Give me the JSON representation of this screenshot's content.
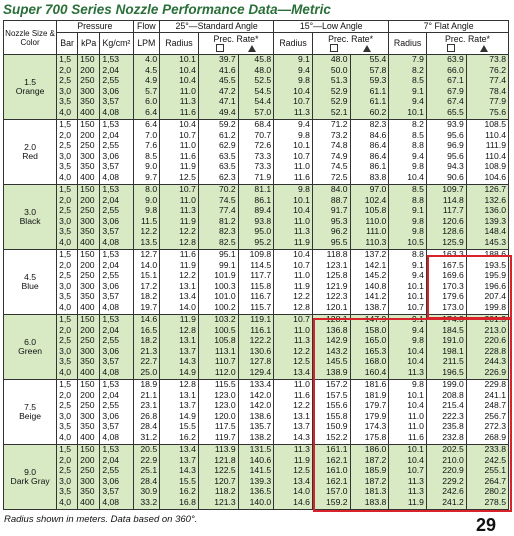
{
  "title": "Super 700  Series Nozzle Performance Data—Metric",
  "headers": {
    "nozzle_size_color": "Nozzle Size & Color",
    "pressure": "Pressure",
    "flow": "Flow",
    "std_angle": "25°—Standard Angle",
    "low_angle": "15°—Low Angle",
    "flat_angle": "7° Flat Angle",
    "bar": "Bar",
    "kpa": "kPa",
    "kgcm2": "Kg/cm²",
    "lpm": "LPM",
    "radius": "Radius",
    "prec_rate": "Prec. Rate*"
  },
  "groups": [
    {
      "size": "1.5",
      "color": "Orange",
      "rows": [
        [
          "1,5",
          "150",
          "1,53",
          "4.0",
          "10.1",
          "39.7",
          "45.8",
          "9.1",
          "48.0",
          "55.4",
          "7.9",
          "63.9",
          "73.8"
        ],
        [
          "2,0",
          "200",
          "2,04",
          "4.5",
          "10.4",
          "41.6",
          "48.0",
          "9.4",
          "50.0",
          "57.8",
          "8.2",
          "66.0",
          "76.2"
        ],
        [
          "2,5",
          "250",
          "2,55",
          "4.9",
          "10.4",
          "45.5",
          "52.5",
          "9.8",
          "51.3",
          "59.3",
          "8.5",
          "67.1",
          "77.4"
        ],
        [
          "3,0",
          "300",
          "3,06",
          "5.7",
          "11.0",
          "47.2",
          "54.5",
          "10.4",
          "52.9",
          "61.1",
          "9.1",
          "67.9",
          "78.4"
        ],
        [
          "3,5",
          "350",
          "3,57",
          "6.0",
          "11.3",
          "47.1",
          "54.4",
          "10.7",
          "52.9",
          "61.1",
          "9.4",
          "67.4",
          "77.9"
        ],
        [
          "4,0",
          "400",
          "4,08",
          "6.4",
          "11.6",
          "49.4",
          "57.0",
          "11.3",
          "52.1",
          "60.2",
          "10.1",
          "65.5",
          "75.6"
        ]
      ]
    },
    {
      "size": "2.0",
      "color": "Red",
      "rows": [
        [
          "1,5",
          "150",
          "1,53",
          "6.4",
          "10.4",
          "59.2",
          "68.4",
          "9.4",
          "71.2",
          "82.3",
          "8.2",
          "93.9",
          "108.5"
        ],
        [
          "2,0",
          "200",
          "2,04",
          "7.0",
          "10.7",
          "61.2",
          "70.7",
          "9.8",
          "73.2",
          "84.6",
          "8.5",
          "95.6",
          "110.4"
        ],
        [
          "2,5",
          "250",
          "2,55",
          "7.6",
          "11.0",
          "62.9",
          "72.6",
          "10.1",
          "74.8",
          "86.4",
          "8.8",
          "96.9",
          "111.9"
        ],
        [
          "3,0",
          "300",
          "3,06",
          "8.5",
          "11.6",
          "63.5",
          "73.3",
          "10.7",
          "74.9",
          "86.4",
          "9.4",
          "95.6",
          "110.4"
        ],
        [
          "3,5",
          "350",
          "3,57",
          "9.0",
          "11.9",
          "63.5",
          "73.3",
          "11.0",
          "74.5",
          "86.1",
          "9.8",
          "94.3",
          "108.9"
        ],
        [
          "4,0",
          "400",
          "4,08",
          "9.7",
          "12.5",
          "62.3",
          "71.9",
          "11.6",
          "72.5",
          "83.8",
          "10.4",
          "90.6",
          "104.6"
        ]
      ]
    },
    {
      "size": "3.0",
      "color": "Black",
      "rows": [
        [
          "1,5",
          "150",
          "1,53",
          "8.0",
          "10.7",
          "70.2",
          "81.1",
          "9.8",
          "84.0",
          "97.0",
          "8.5",
          "109.7",
          "126.7"
        ],
        [
          "2,0",
          "200",
          "2,04",
          "9.0",
          "11.0",
          "74.5",
          "86.1",
          "10.1",
          "88.7",
          "102.4",
          "8.8",
          "114.8",
          "132.6"
        ],
        [
          "2,5",
          "250",
          "2,55",
          "9.8",
          "11.3",
          "77.4",
          "89.4",
          "10.4",
          "91.7",
          "105.8",
          "9.1",
          "117.7",
          "136.0"
        ],
        [
          "3,0",
          "300",
          "3,06",
          "11.5",
          "11.9",
          "81.2",
          "93.8",
          "11.0",
          "95.3",
          "110.0",
          "9.8",
          "120.6",
          "139.3"
        ],
        [
          "3,5",
          "350",
          "3,57",
          "12.2",
          "12.2",
          "82.3",
          "95.0",
          "11.3",
          "96.2",
          "111.0",
          "9.8",
          "128.6",
          "148.4"
        ],
        [
          "4,0",
          "400",
          "4,08",
          "13.5",
          "12.8",
          "82.5",
          "95.2",
          "11.9",
          "95.5",
          "110.3",
          "10.5",
          "125.9",
          "145.3"
        ]
      ]
    },
    {
      "size": "4.5",
      "color": "Blue",
      "rows": [
        [
          "1,5",
          "150",
          "1,53",
          "12.7",
          "11.6",
          "95.1",
          "109.8",
          "10.4",
          "118.8",
          "137.2",
          "8.8",
          "163.3",
          "188.6"
        ],
        [
          "2,0",
          "200",
          "2,04",
          "14.0",
          "11.9",
          "99.1",
          "114.5",
          "10.7",
          "123.1",
          "142.1",
          "9.1",
          "167.5",
          "193.5"
        ],
        [
          "2,5",
          "250",
          "2,55",
          "15.1",
          "12.2",
          "101.9",
          "117.7",
          "11.0",
          "125.8",
          "145.2",
          "9.4",
          "169.6",
          "195.9"
        ],
        [
          "3,0",
          "300",
          "3,06",
          "17.2",
          "13.1",
          "100.3",
          "115.8",
          "11.9",
          "121.9",
          "140.8",
          "10.1",
          "170.3",
          "196.6"
        ],
        [
          "3,5",
          "350",
          "3,57",
          "18.2",
          "13.4",
          "101.0",
          "116.7",
          "12.2",
          "122.3",
          "141.2",
          "10.1",
          "179.6",
          "207.4"
        ],
        [
          "4,0",
          "400",
          "4,08",
          "19.7",
          "14.0",
          "100.2",
          "115.7",
          "12.8",
          "120.1",
          "138.7",
          "10.7",
          "173.0",
          "199.8"
        ]
      ]
    },
    {
      "size": "6.0",
      "color": "Green",
      "rows": [
        [
          "1,5",
          "150",
          "1,53",
          "14.6",
          "11.9",
          "103.2",
          "119.1",
          "10.7",
          "128.1",
          "147.9",
          "9.1",
          "174.3",
          "201.3"
        ],
        [
          "2,0",
          "200",
          "2,04",
          "16.5",
          "12.8",
          "100.5",
          "116.1",
          "11.0",
          "136.8",
          "158.0",
          "9.4",
          "184.5",
          "213.0"
        ],
        [
          "2,5",
          "250",
          "2,55",
          "18.2",
          "13.1",
          "105.8",
          "122.2",
          "11.3",
          "142.9",
          "165.0",
          "9.8",
          "191.0",
          "220.6"
        ],
        [
          "3,0",
          "300",
          "3,06",
          "21.3",
          "13.7",
          "113.1",
          "130.6",
          "12.2",
          "143.2",
          "165.3",
          "10.4",
          "198.1",
          "228.8"
        ],
        [
          "3,5",
          "350",
          "3,57",
          "22.7",
          "14.3",
          "110.7",
          "127.8",
          "12.5",
          "145.5",
          "168.0",
          "10.4",
          "211.5",
          "244.3"
        ],
        [
          "4,0",
          "400",
          "4,08",
          "25.0",
          "14.9",
          "112.0",
          "129.4",
          "13.4",
          "138.9",
          "160.4",
          "11.3",
          "196.5",
          "226.9"
        ]
      ]
    },
    {
      "size": "7.5",
      "color": "Beige",
      "rows": [
        [
          "1,5",
          "150",
          "1,53",
          "18.9",
          "12.8",
          "115.5",
          "133.4",
          "11.0",
          "157.2",
          "181.6",
          "9.8",
          "199.0",
          "229.8"
        ],
        [
          "2,0",
          "200",
          "2,04",
          "21.1",
          "13.1",
          "123.0",
          "142.0",
          "11.6",
          "157.5",
          "181.9",
          "10.1",
          "208.8",
          "241.1"
        ],
        [
          "2,5",
          "250",
          "2,55",
          "23.1",
          "13.7",
          "123.0",
          "142.0",
          "12.2",
          "155.6",
          "179.7",
          "10.4",
          "215.4",
          "248.7"
        ],
        [
          "3,0",
          "300",
          "3,06",
          "26.8",
          "14.9",
          "120.0",
          "138.6",
          "13.1",
          "155.8",
          "179.9",
          "11.0",
          "222.3",
          "256.7"
        ],
        [
          "3,5",
          "350",
          "3,57",
          "28.4",
          "15.5",
          "117.5",
          "135.7",
          "13.7",
          "150.9",
          "174.3",
          "11.0",
          "235.8",
          "272.3"
        ],
        [
          "4,0",
          "400",
          "4,08",
          "31.2",
          "16.2",
          "119.7",
          "138.2",
          "14.3",
          "152.2",
          "175.8",
          "11.6",
          "232.8",
          "268.9"
        ]
      ]
    },
    {
      "size": "9.0",
      "color": "Dark Gray",
      "rows": [
        [
          "1,5",
          "150",
          "1,53",
          "20.5",
          "13.4",
          "113.9",
          "131.5",
          "11.3",
          "161.1",
          "186.0",
          "10.1",
          "202.5",
          "233.8"
        ],
        [
          "2,0",
          "200",
          "2,04",
          "22.9",
          "13.7",
          "121.8",
          "140.6",
          "11.9",
          "162.1",
          "187.2",
          "10.4",
          "210.0",
          "242.5"
        ],
        [
          "2,5",
          "250",
          "2,55",
          "25.1",
          "14.3",
          "122.5",
          "141.5",
          "12.5",
          "161.0",
          "185.9",
          "10.7",
          "220.9",
          "255.1"
        ],
        [
          "3,0",
          "300",
          "3,06",
          "28.4",
          "15.5",
          "120.7",
          "139.3",
          "13.4",
          "162.1",
          "187.2",
          "11.3",
          "229.2",
          "264.7"
        ],
        [
          "3,5",
          "350",
          "3,57",
          "30.9",
          "16.2",
          "118.2",
          "136.5",
          "14.0",
          "157.0",
          "181.3",
          "11.3",
          "242.6",
          "280.2"
        ],
        [
          "4,0",
          "400",
          "4,08",
          "33.2",
          "16.8",
          "121.3",
          "140.0",
          "14.6",
          "159.2",
          "183.8",
          "11.9",
          "241.2",
          "278.5"
        ]
      ]
    }
  ],
  "footer": "Radius shown in meters.  Data based on 360°.",
  "page_number": "29"
}
